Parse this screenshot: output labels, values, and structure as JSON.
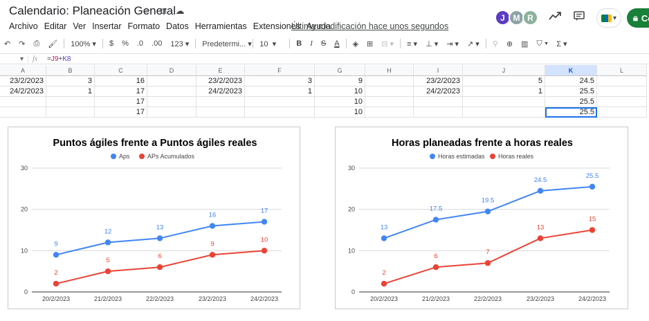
{
  "doc": {
    "title": "Calendario: Planeación General",
    "last_edit": "Última modificación hace unos segundos"
  },
  "menu": [
    "Archivo",
    "Editar",
    "Ver",
    "Insertar",
    "Formato",
    "Datos",
    "Herramientas",
    "Extensiones",
    "Ayuda"
  ],
  "avatars": [
    {
      "letter": "J",
      "color": "#5b3cc4"
    },
    {
      "letter": "M",
      "color": "#8ea3a6"
    },
    {
      "letter": "R",
      "color": "#8bb39a"
    }
  ],
  "share_label": "Co",
  "toolbar": {
    "zoom": "100%",
    "currency": "$",
    "percent": "%",
    "dec_less": ".0",
    "dec_more": ".00",
    "number_format": "123",
    "font": "Predetermi...",
    "font_size": "10",
    "bold": "B",
    "italic": "I",
    "strike": "S",
    "text_color": "A"
  },
  "formula_bar": {
    "fx": "fx",
    "formula_prefix": "=",
    "ref1": "J9",
    "op": "+",
    "ref2": "K8"
  },
  "grid": {
    "columns": [
      "A",
      "B",
      "C",
      "D",
      "E",
      "F",
      "G",
      "H",
      "I",
      "J",
      "K",
      "L"
    ],
    "selected_column": "K",
    "rows": [
      [
        "23/2/2023",
        "3",
        "16",
        "",
        "23/2/2023",
        "3",
        "9",
        "",
        "23/2/2023",
        "5",
        "24.5",
        ""
      ],
      [
        "24/2/2023",
        "1",
        "17",
        "",
        "24/2/2023",
        "1",
        "10",
        "",
        "24/2/2023",
        "1",
        "25.5",
        ""
      ],
      [
        "",
        "",
        "17",
        "",
        "",
        "",
        "10",
        "",
        "",
        "",
        "25.5",
        ""
      ],
      [
        "",
        "",
        "17",
        "",
        "",
        "",
        "10",
        "",
        "",
        "",
        "25.5",
        ""
      ]
    ]
  },
  "chart_data": [
    {
      "type": "line",
      "title": "Puntos ágiles frente a Puntos ágiles reales",
      "categories": [
        "20/2/2023",
        "21/2/2023",
        "22/2/2023",
        "23/2/2023",
        "24/2/2023"
      ],
      "series": [
        {
          "name": "Aps",
          "color": "#4285f4",
          "values": [
            9,
            12,
            13,
            16,
            17
          ]
        },
        {
          "name": "APs Acumulados",
          "color": "#ea4335",
          "values": [
            2,
            5,
            6,
            9,
            10
          ]
        }
      ],
      "yticks": [
        "0",
        "10",
        "20",
        "30"
      ],
      "ylim": [
        0,
        30
      ],
      "legend": "top",
      "grid": true
    },
    {
      "type": "line",
      "title": "Horas planeadas frente a horas reales",
      "categories": [
        "20/2/2023",
        "21/2/2023",
        "22/2/2023",
        "23/2/2023",
        "24/2/2023"
      ],
      "series": [
        {
          "name": "Horas estimadas",
          "color": "#4285f4",
          "values": [
            13,
            17.5,
            19.5,
            24.5,
            25.5
          ]
        },
        {
          "name": "Horas reales",
          "color": "#ea4335",
          "values": [
            2,
            6,
            7,
            13,
            15
          ]
        }
      ],
      "yticks": [
        "0",
        "10",
        "20",
        "30"
      ],
      "ylim": [
        0,
        30
      ],
      "legend": "top",
      "grid": true
    }
  ]
}
